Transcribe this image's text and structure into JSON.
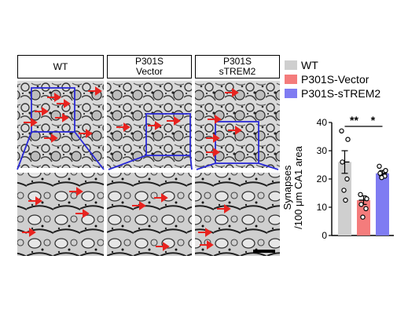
{
  "panels": [
    {
      "line1": "WT",
      "line2": ""
    },
    {
      "line1": "P301S",
      "line2": "Vector"
    },
    {
      "line1": "P301S",
      "line2": "sTREM2"
    }
  ],
  "legend": [
    {
      "name": "WT",
      "color": "#cfcfcf"
    },
    {
      "name": "P301S-Vector",
      "color": "#f47c7c"
    },
    {
      "name": "P301S-sTREM2",
      "color": "#7f7cf2"
    }
  ],
  "colors": {
    "zoom_box": "#2a2ad6",
    "arrow": "#e8231f",
    "scale_bar": "#000000"
  },
  "chart_data": {
    "type": "bar",
    "title": "",
    "xlabel": "",
    "ylabel_line1": "Synapses",
    "ylabel_line2": "/100 μm CA1 area",
    "ylim": [
      0,
      40
    ],
    "yticks": [
      "0",
      "10",
      "20",
      "30",
      "40"
    ],
    "categories": [
      "WT",
      "P301S-Vector",
      "P301S-sTREM2"
    ],
    "values": [
      26,
      12.5,
      22
    ],
    "errors": [
      4,
      1.5,
      1
    ],
    "points": [
      [
        37,
        34,
        26,
        20,
        16,
        12.5
      ],
      [
        14.5,
        13,
        11,
        9.5,
        6.5
      ],
      [
        24.5,
        23,
        22,
        21,
        20.5
      ]
    ],
    "significance": [
      {
        "from": 0,
        "to": 1,
        "label": "**"
      },
      {
        "from": 1,
        "to": 2,
        "label": "*"
      }
    ]
  }
}
